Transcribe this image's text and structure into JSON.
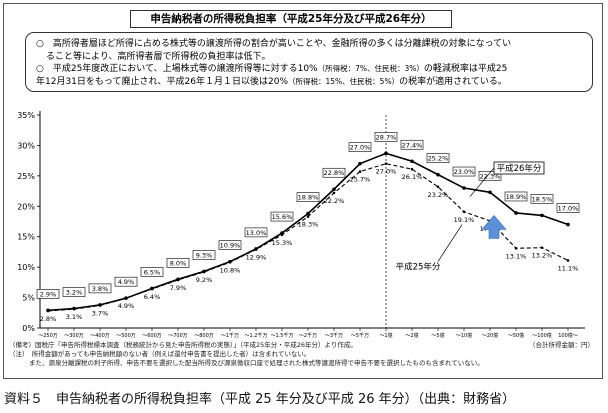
{
  "title": "申告納税者の所得税負担率（平成25年分及び平成26年分）",
  "notes": {
    "n1a": "○　高所得者層ほど所得に占める株式等の譲渡所得の割合が高いことや、金融所得の多くは分離課税の対象になってい",
    "n1b": "ること等により、高所得者層で所得税の負担率は低下。",
    "n2a": "○　平成25年度改正において、上場株式等の譲渡所得等に対する10%",
    "n2a_small": "（所得税：7%、住民税：3%）",
    "n2a_tail": "の軽減税率は平成25",
    "n2b": "年12月31日をもって廃止され、平成26年１月１日以後は20%",
    "n2b_small": "（所得税：15%、住民税：5%）",
    "n2b_tail": "の税率が適用されている。"
  },
  "chart_data": {
    "type": "line",
    "categories": [
      "～250万",
      "～300万",
      "～400万",
      "～500万",
      "～600万",
      "～700万",
      "～800万",
      "～1千万",
      "～1.2千万",
      "～1.5千万",
      "～2千万",
      "～3千万",
      "～5千万",
      "～1億",
      "～2億",
      "～5億",
      "～10億",
      "～20億",
      "～50億",
      "～100億",
      "100億～"
    ],
    "ylim": [
      0,
      35
    ],
    "yticks": [
      "0%",
      "5%",
      "10%",
      "15%",
      "20%",
      "25%",
      "30%",
      "35%"
    ],
    "series": [
      {
        "name": "平成26年分",
        "style": "solid",
        "color": "#000000",
        "values": [
          2.9,
          3.2,
          3.8,
          4.9,
          6.5,
          8.0,
          9.3,
          10.9,
          13.0,
          15.6,
          18.8,
          22.8,
          27.0,
          28.7,
          27.4,
          25.2,
          23.0,
          22.3,
          18.9,
          18.5,
          17.0
        ],
        "labels": [
          "2.9%",
          "3.2%",
          "3.8%",
          "4.9%",
          "6.5%",
          "8.0%",
          "9.3%",
          "10.9%",
          "13.0%",
          "15.6%",
          "18.8%",
          "22.8%",
          "27.0%",
          "28.7%",
          "27.4%",
          "25.2%",
          "23.0%",
          "22.3%",
          "18.9%",
          "18.5%",
          "17.0%"
        ]
      },
      {
        "name": "平成25年分",
        "style": "dashed",
        "color": "#000000",
        "values": [
          2.8,
          3.1,
          3.7,
          4.9,
          6.4,
          7.9,
          9.2,
          10.8,
          12.9,
          15.3,
          18.3,
          22.2,
          25.7,
          27.0,
          26.1,
          23.2,
          19.1,
          17.6,
          13.1,
          13.2,
          11.1
        ],
        "labels": [
          "2.8%",
          "3.1%",
          "3.7%",
          "4.9%",
          "6.4%",
          "7.9%",
          "9.2%",
          "10.8%",
          "12.9%",
          "15.3%",
          "18.3%",
          "22.2%",
          "25.7%",
          "27.0%",
          "26.1%",
          "23.2%",
          "19.1%",
          "17.6%",
          "13.1%",
          "13.2%",
          "11.1%"
        ]
      }
    ],
    "grid": false,
    "annotations": [
      "平成26年分",
      "平成25年分"
    ],
    "arrow_color": "#5b8fd6"
  },
  "source": {
    "line1": "（備考）国税庁「申告所得税標本調査（税務統計から見た申告所得税の実態）」（平成25年分・平成26年分）より作成。",
    "unit": "（合計所得金額：円）",
    "line2": "（注）　所得金額があっても申告納税額のない者（例えば還付申告書を提出した者）は含まれていない。",
    "line3": "また、源泉分離課税の利子所得、申告不要を選択した配当所得及び源泉徴収口座で処理された株式等譲渡所得で申告不要を選択したものも含まれていない。"
  },
  "caption": "資料５　申告納税者の所得税負担率（平成 25 年分及び平成 26 年分）（出典：財務省）"
}
